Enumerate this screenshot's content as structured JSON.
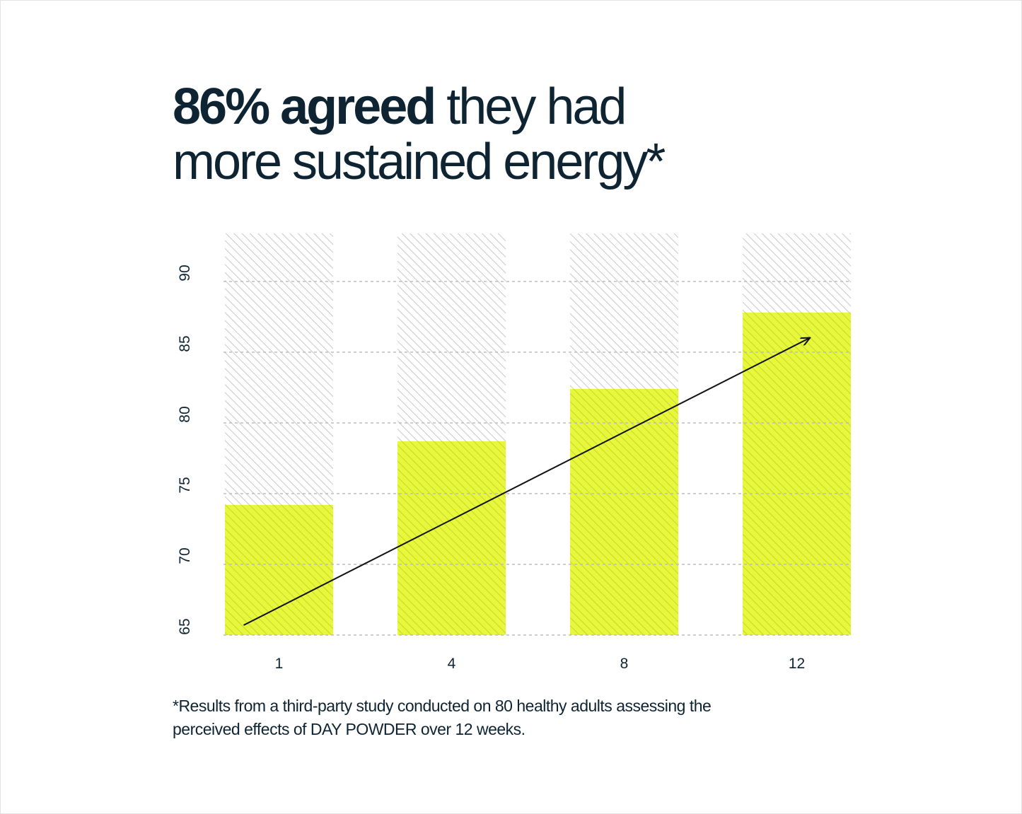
{
  "headline": {
    "strong": "86% agreed",
    "rest": " they had",
    "line2": "more sustained energy*"
  },
  "footnote": {
    "line1": "*Results from a third-party study conducted on 80 healthy adults assessing the",
    "line2": "perceived effects of DAY POWDER over 12 weeks."
  },
  "colors": {
    "text": "#0f2432",
    "bar_fill": "#e6f73c",
    "bar_hatch": "#c9d62a",
    "background_hatch": "#c8c8c8",
    "grid": "#bdbdbd",
    "arrow": "#111111"
  },
  "chart_data": {
    "type": "bar",
    "categories": [
      "1",
      "4",
      "8",
      "12"
    ],
    "values": [
      74.2,
      78.7,
      82.4,
      87.8
    ],
    "title": "",
    "xlabel": "",
    "ylabel": "",
    "ylim": [
      65,
      93.4
    ],
    "yticks": [
      "65",
      "70",
      "75",
      "80",
      "85",
      "90"
    ],
    "grid": "horizontal dashed",
    "annotations": [
      "upward trend arrow"
    ]
  }
}
